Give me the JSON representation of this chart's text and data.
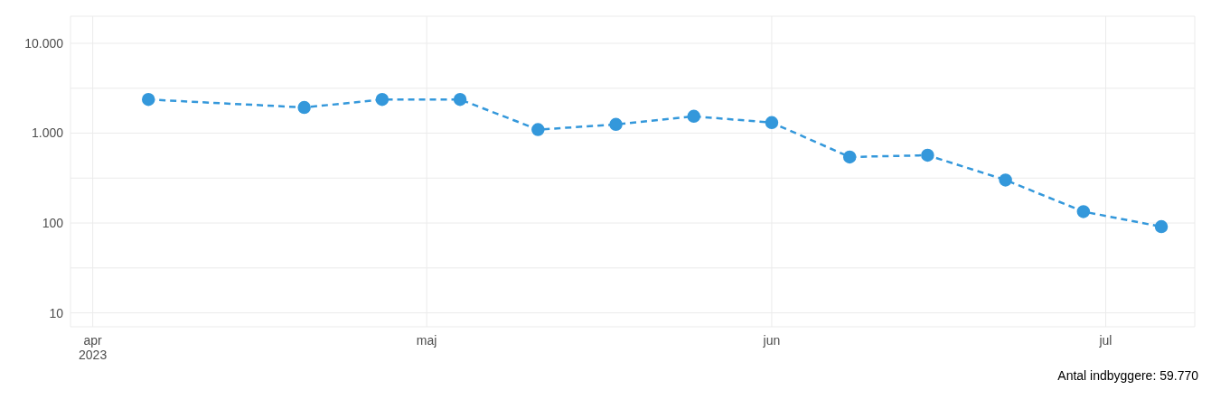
{
  "chart_data": {
    "type": "line",
    "x": [
      "2023-04-06",
      "2023-04-20",
      "2023-04-27",
      "2023-05-04",
      "2023-05-11",
      "2023-05-18",
      "2023-05-25",
      "2023-06-01",
      "2023-06-08",
      "2023-06-15",
      "2023-06-22",
      "2023-06-29",
      "2023-07-06"
    ],
    "series": [
      {
        "color": "#3498db",
        "values": [
          2370,
          1930,
          2370,
          2370,
          1095,
          1250,
          1540,
          1310,
          543,
          568,
          301,
          134,
          91
        ]
      }
    ],
    "xlim": [
      "2023-03-30",
      "2023-07-09"
    ],
    "xticks": [
      {
        "value": "2023-04-01",
        "label": "apr\n2023"
      },
      {
        "value": "2023-05-01",
        "label": "maj"
      },
      {
        "value": "2023-06-01",
        "label": "jun"
      },
      {
        "value": "2023-07-01",
        "label": "jul"
      }
    ],
    "ylim": [
      7,
      20000
    ],
    "yticks": [
      10,
      {
        "value": 31.62,
        "label": null
      },
      100,
      {
        "value": 316.2,
        "label": null
      },
      {
        "value": 1000,
        "label": "1.000"
      },
      {
        "value": 3162,
        "label": null
      },
      {
        "value": 10000,
        "label": "10.000"
      }
    ],
    "log": true,
    "grid": true,
    "marker": "circle",
    "line_style": "dashed",
    "annotations": [
      "Antal indbyggere: 59.770"
    ]
  }
}
